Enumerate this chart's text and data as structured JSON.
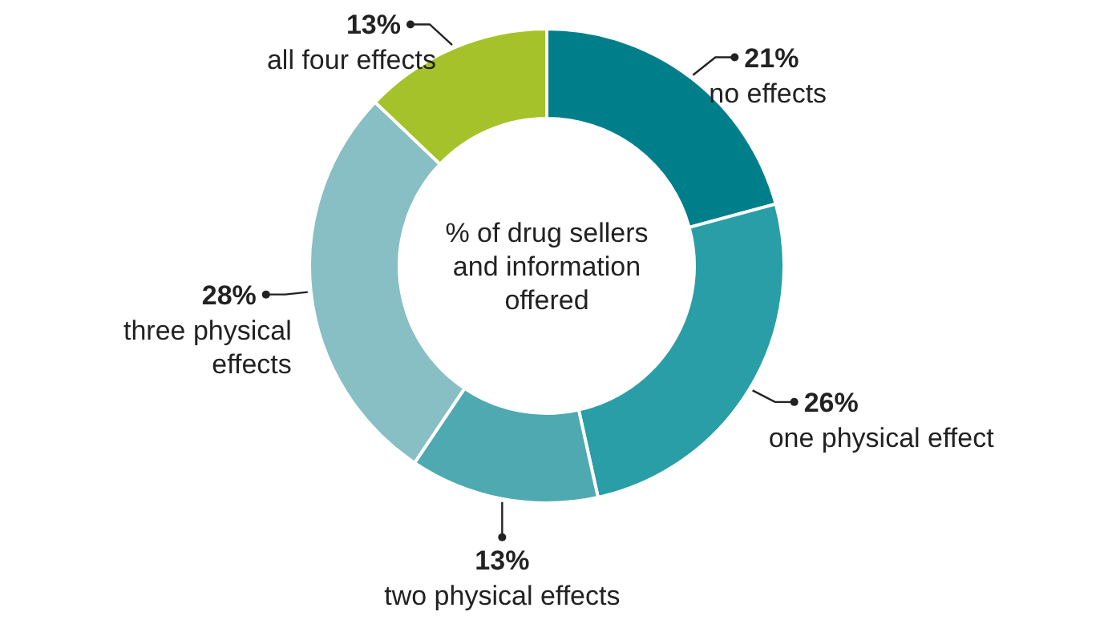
{
  "chart_data": {
    "type": "donut",
    "title": "% of drug sellers and information offered",
    "categories": [
      "no effects",
      "one physical effect",
      "two physical effects",
      "three physical effects",
      "all four effects"
    ],
    "values": [
      21,
      26,
      13,
      28,
      13
    ],
    "colors": [
      "#007f8a",
      "#2a9ea6",
      "#4fa9b0",
      "#88bfc5",
      "#a5c22a"
    ],
    "value_labels": [
      "21%",
      "26%",
      "13%",
      "28%",
      "13%"
    ]
  }
}
